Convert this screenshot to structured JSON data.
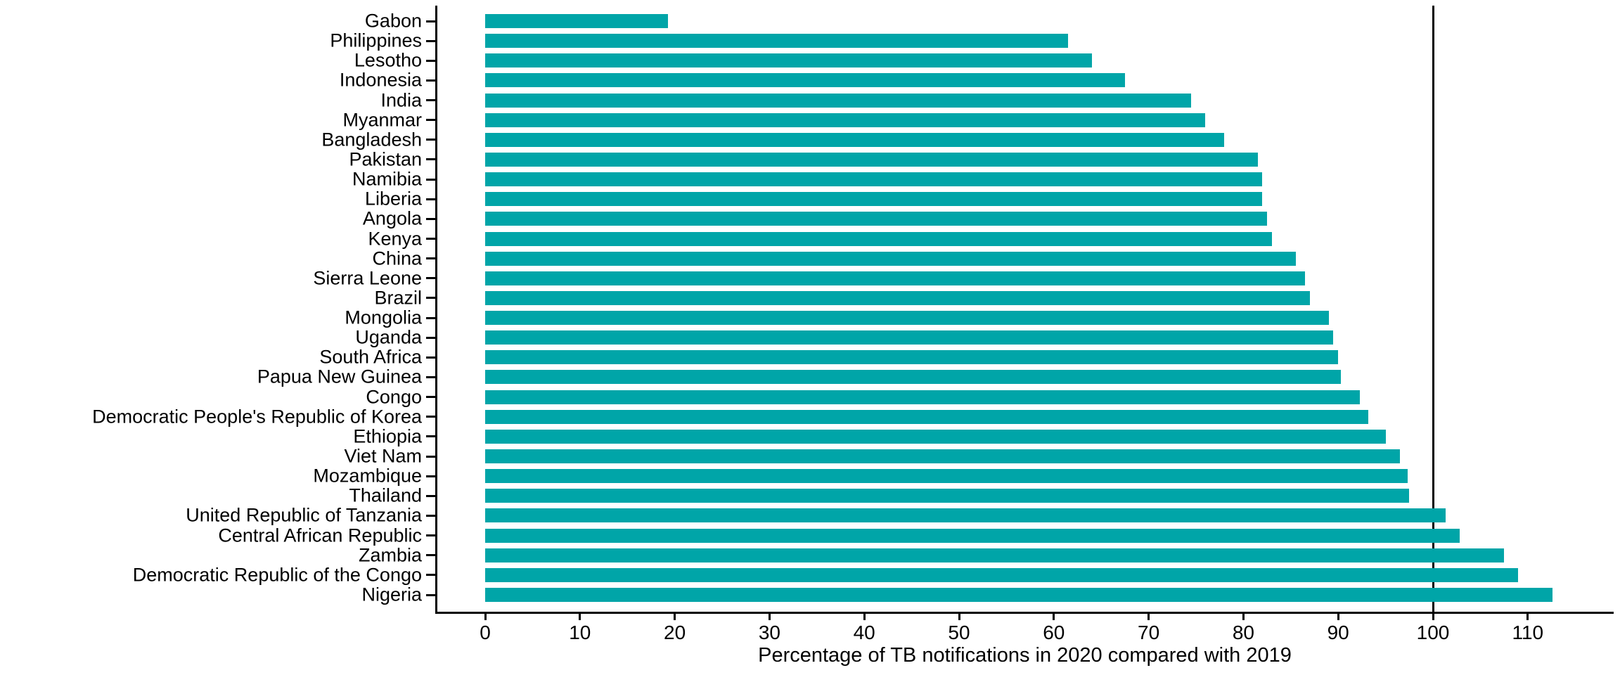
{
  "chart_data": {
    "type": "bar",
    "orientation": "horizontal",
    "title": "",
    "xlabel": "Percentage of TB notifications in 2020 compared with 2019",
    "ylabel": "",
    "categories": [
      "Gabon",
      "Philippines",
      "Lesotho",
      "Indonesia",
      "India",
      "Myanmar",
      "Bangladesh",
      "Pakistan",
      "Namibia",
      "Liberia",
      "Angola",
      "Kenya",
      "China",
      "Sierra Leone",
      "Brazil",
      "Mongolia",
      "Uganda",
      "South Africa",
      "Papua New Guinea",
      "Congo",
      "Democratic People's Republic of Korea",
      "Ethiopia",
      "Viet Nam",
      "Mozambique",
      "Thailand",
      "United Republic of Tanzania",
      "Central African Republic",
      "Zambia",
      "Democratic Republic of the Congo",
      "Nigeria"
    ],
    "values": [
      19.3,
      61.5,
      64,
      67.5,
      74.5,
      76,
      78,
      81.5,
      82,
      82,
      82.5,
      83,
      85.5,
      86.5,
      87,
      89,
      89.5,
      90,
      90.3,
      92.3,
      93.2,
      95,
      96.5,
      97.3,
      97.5,
      101.3,
      102.8,
      107.5,
      109,
      112.6
    ],
    "x_ticks": [
      0,
      10,
      20,
      30,
      40,
      50,
      60,
      70,
      80,
      90,
      100,
      110
    ],
    "xlim": [
      0,
      117
    ],
    "reference_line_x": 100,
    "grid": "off",
    "legend": "none",
    "bar_color": "#00A5A8",
    "axis_color": "#000000",
    "text_color": "#000000"
  }
}
